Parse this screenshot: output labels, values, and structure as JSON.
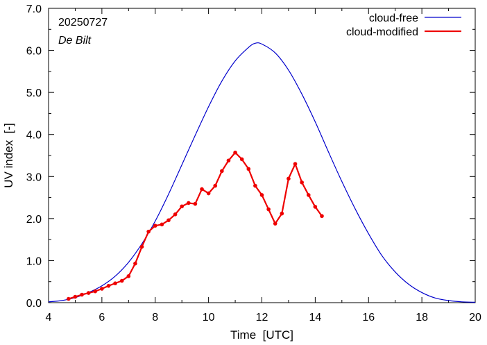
{
  "chart_data": {
    "type": "line",
    "date_label": "20250727",
    "station_label": "De Bilt",
    "xlabel": "Time  [UTC]",
    "ylabel": "UV index  [-]",
    "xlim": [
      4,
      20
    ],
    "ylim": [
      0,
      7
    ],
    "x_ticks": [
      "4",
      "6",
      "8",
      "10",
      "12",
      "14",
      "16",
      "18",
      "20"
    ],
    "y_ticks": [
      "0.0",
      "1.0",
      "2.0",
      "3.0",
      "4.0",
      "5.0",
      "6.0",
      "7.0"
    ],
    "grid": false,
    "legend_position": "top-right",
    "series": [
      {
        "name": "cloud-free",
        "color": "#0000cc",
        "markers": false,
        "x": [
          4.0,
          4.5,
          5.0,
          5.5,
          6.0,
          6.5,
          7.0,
          7.5,
          8.0,
          8.5,
          9.0,
          9.5,
          10.0,
          10.5,
          11.0,
          11.5,
          11.75,
          12.0,
          12.5,
          13.0,
          13.5,
          14.0,
          14.5,
          15.0,
          15.5,
          16.0,
          16.5,
          17.0,
          17.5,
          18.0,
          18.5,
          19.0,
          19.5,
          20.0
        ],
        "y": [
          0.02,
          0.05,
          0.12,
          0.24,
          0.4,
          0.63,
          0.96,
          1.4,
          1.94,
          2.58,
          3.28,
          3.98,
          4.66,
          5.27,
          5.75,
          6.07,
          6.17,
          6.15,
          5.94,
          5.53,
          4.96,
          4.3,
          3.58,
          2.88,
          2.23,
          1.64,
          1.12,
          0.73,
          0.44,
          0.24,
          0.11,
          0.05,
          0.02,
          0.01
        ]
      },
      {
        "name": "cloud-modified",
        "color": "#ee0000",
        "markers": true,
        "x": [
          4.75,
          5.0,
          5.25,
          5.5,
          5.75,
          6.0,
          6.25,
          6.5,
          6.75,
          7.0,
          7.25,
          7.5,
          7.75,
          8.0,
          8.25,
          8.5,
          8.75,
          9.0,
          9.25,
          9.5,
          9.75,
          10.0,
          10.25,
          10.5,
          10.75,
          11.0,
          11.25,
          11.5,
          11.75,
          12.0,
          12.25,
          12.5,
          12.75,
          13.0,
          13.25,
          13.5,
          13.75,
          14.0,
          14.25
        ],
        "y": [
          0.09,
          0.14,
          0.19,
          0.23,
          0.27,
          0.33,
          0.4,
          0.46,
          0.52,
          0.63,
          0.93,
          1.33,
          1.69,
          1.83,
          1.86,
          1.96,
          2.1,
          2.29,
          2.37,
          2.35,
          2.7,
          2.6,
          2.78,
          3.13,
          3.38,
          3.57,
          3.41,
          3.18,
          2.78,
          2.56,
          2.22,
          1.88,
          2.12,
          2.95,
          3.3,
          2.86,
          2.56,
          2.28,
          2.06
        ]
      }
    ]
  }
}
